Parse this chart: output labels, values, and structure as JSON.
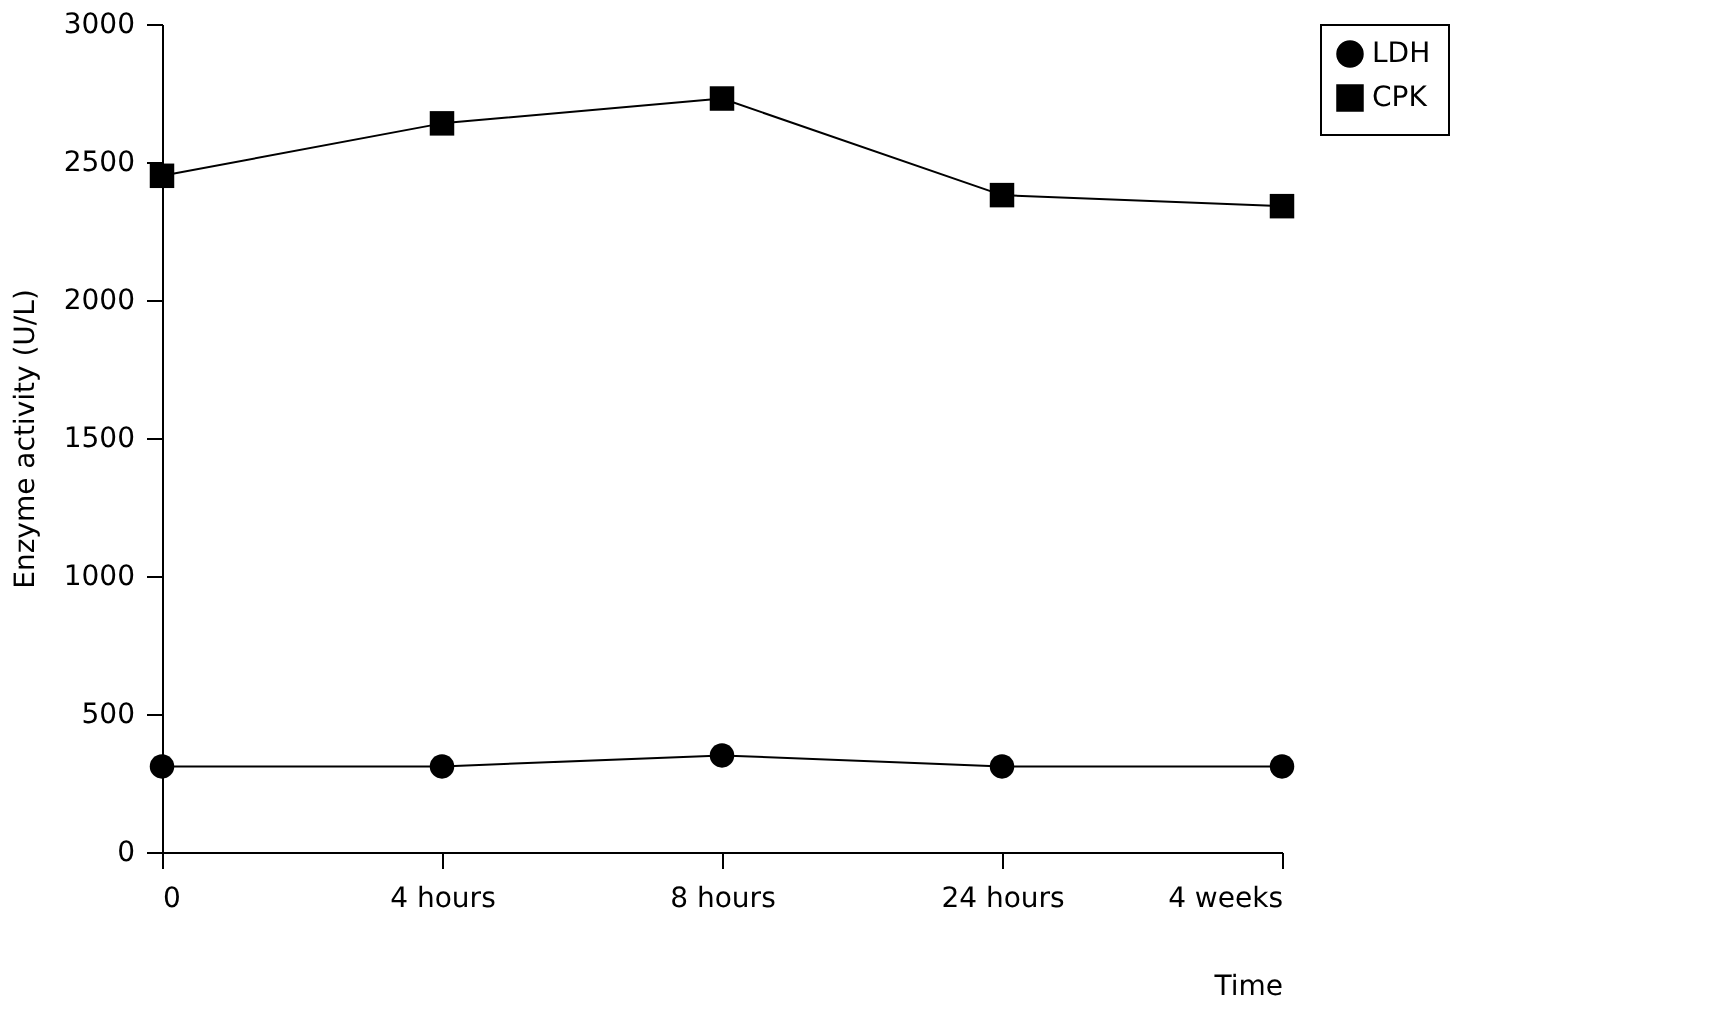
{
  "chart_data": {
    "type": "line",
    "xlabel": "Time",
    "ylabel": "Enzyme activity (U/L)",
    "categories": [
      "0",
      "4 hours",
      "8 hours",
      "24 hours",
      "4 weeks"
    ],
    "series": [
      {
        "name": "LDH",
        "color": "#000000",
        "marker": "circle",
        "values": [
          310,
          310,
          350,
          310,
          310
        ]
      },
      {
        "name": "CPK",
        "color": "#000000",
        "marker": "square",
        "values": [
          2450,
          2640,
          2730,
          2380,
          2340
        ]
      }
    ],
    "ylim": [
      0,
      3000
    ],
    "yticks": [
      0,
      500,
      1000,
      1500,
      2000,
      2500,
      3000
    ],
    "grid": false,
    "legend": "right",
    "line_style": "solid"
  }
}
